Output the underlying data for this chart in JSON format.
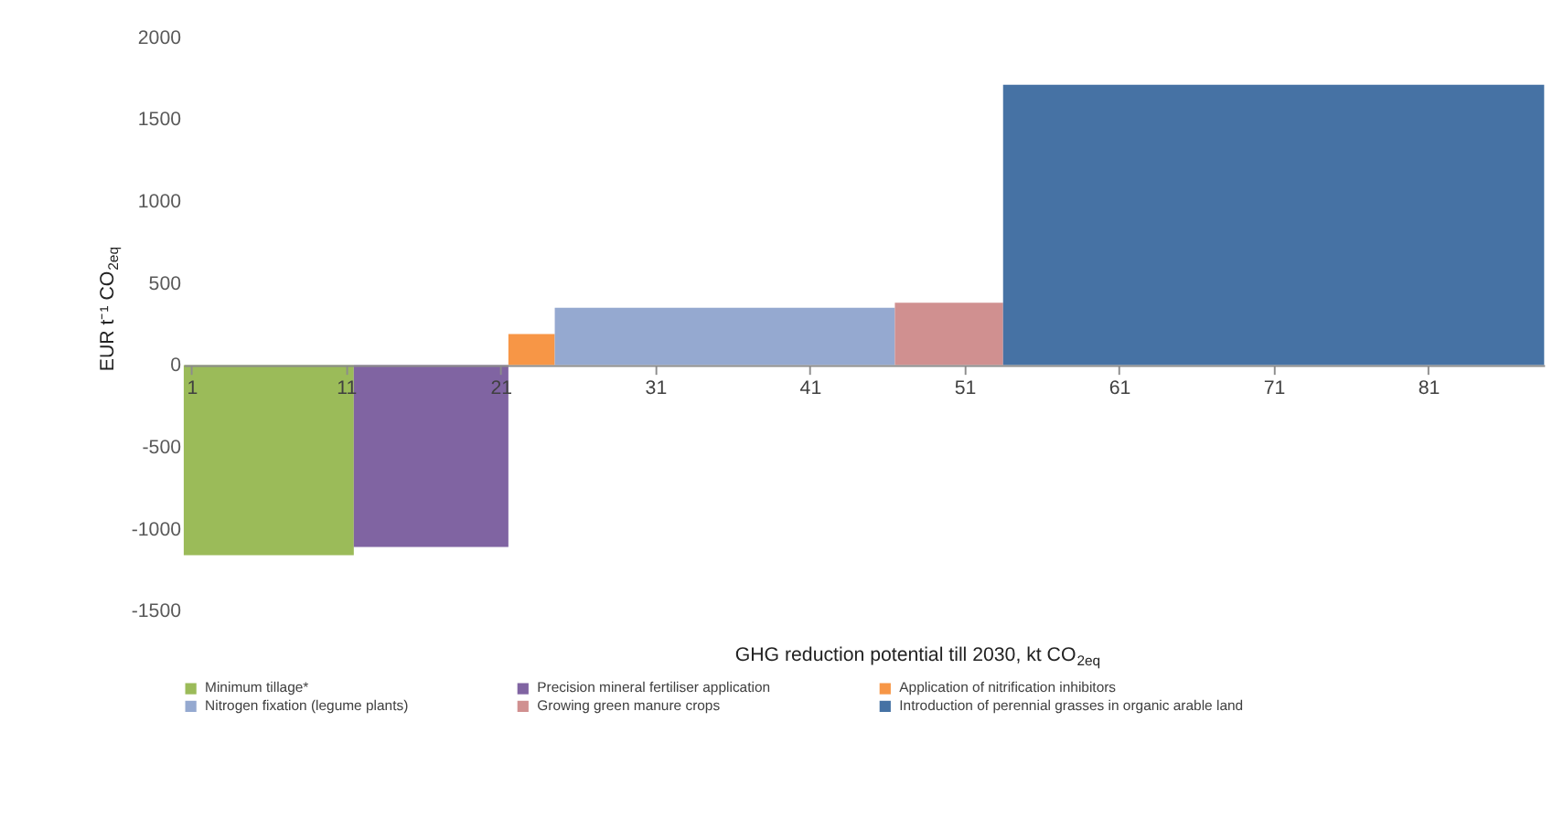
{
  "chart_data": {
    "type": "area",
    "xlabel": "GHG reduction potential till 2030, kt CO$_{2eq}$",
    "ylabel": "EUR t⁻¹ CO$_{2eq}$",
    "xlim": [
      0.5,
      88.5
    ],
    "xticks": [
      1,
      11,
      21,
      31,
      41,
      51,
      61,
      71,
      81
    ],
    "ylim": [
      -1500,
      2000
    ],
    "yticks": [
      -1500,
      -1000,
      -500,
      0,
      500,
      1000,
      1500,
      2000
    ],
    "grid": false,
    "legend": "bottom",
    "series": [
      {
        "name": "Minimum tillage*",
        "color": "#9bbb59",
        "x": [
          0.5,
          11.5
        ],
        "values": [
          -1160,
          -1160
        ]
      },
      {
        "name": "Precision mineral fertiliser application",
        "color": "#8064a2",
        "x": [
          11.5,
          21.5
        ],
        "values": [
          -1110,
          -1110
        ]
      },
      {
        "name": "Application of nitrification inhibitors",
        "color": "#f79646",
        "x": [
          21.5,
          24.5
        ],
        "values": [
          190,
          190
        ]
      },
      {
        "name": "Nitrogen fixation (legume plants)",
        "color": "#95a9d0",
        "x": [
          24.5,
          46.5
        ],
        "values": [
          350,
          350
        ]
      },
      {
        "name": "Growing green manure crops",
        "color": "#d09090",
        "x": [
          46.5,
          53.5
        ],
        "values": [
          380,
          380
        ]
      },
      {
        "name": "Introduction of perennial grasses in organic arable land",
        "color": "#4672a4",
        "x": [
          53.5,
          88.5
        ],
        "values": [
          1710,
          1710
        ]
      }
    ]
  }
}
